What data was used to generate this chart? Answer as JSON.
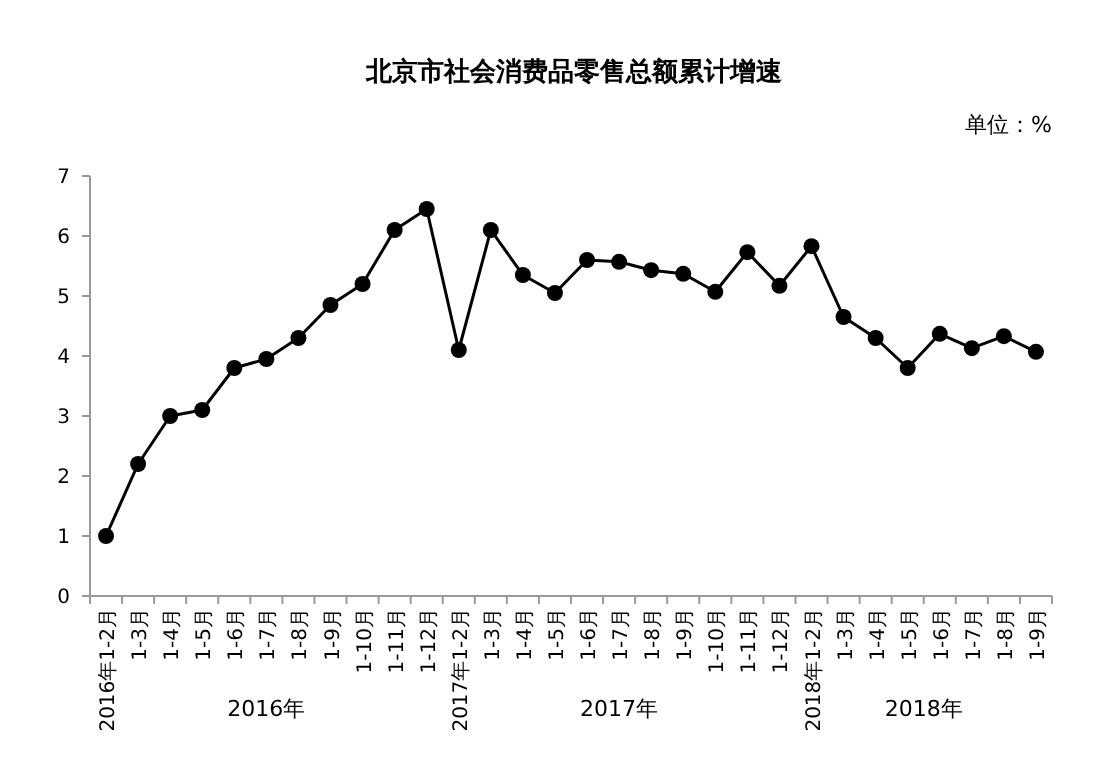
{
  "chart_data": {
    "type": "line",
    "title": "北京市社会消费品零售总额累计增速",
    "categories": [
      "2016年1-2月",
      "1-3月",
      "1-4月",
      "1-5月",
      "1-6月",
      "1-7月",
      "1-8月",
      "1-9月",
      "1-10月",
      "1-11月",
      "1-12月",
      "2017年1-2月",
      "1-3月",
      "1-4月",
      "1-5月",
      "1-6月",
      "1-7月",
      "1-8月",
      "1-9月",
      "1-10月",
      "1-11月",
      "1-12月",
      "2018年1-2月",
      "1-3月",
      "1-4月",
      "1-5月",
      "1-6月",
      "1-7月",
      "1-8月",
      "1-9月"
    ],
    "series": [
      {
        "color": "#000000",
        "values": [
          1.0,
          2.2,
          3.0,
          3.1,
          3.8,
          3.95,
          4.3,
          4.85,
          5.2,
          6.1,
          6.45,
          4.1,
          6.1,
          5.35,
          5.05,
          5.6,
          5.57,
          5.43,
          5.37,
          5.07,
          5.73,
          5.17,
          5.83,
          4.65,
          4.3,
          3.8,
          4.37,
          4.13,
          4.33,
          4.07
        ]
      }
    ],
    "ylim": [
      0,
      7
    ],
    "yticks": [
      0,
      1,
      2,
      3,
      4,
      5,
      6,
      7
    ],
    "marker": "circle",
    "line_style": "solid",
    "annotations": [
      "单位：%",
      "2016年",
      "2017年",
      "2018年"
    ]
  }
}
